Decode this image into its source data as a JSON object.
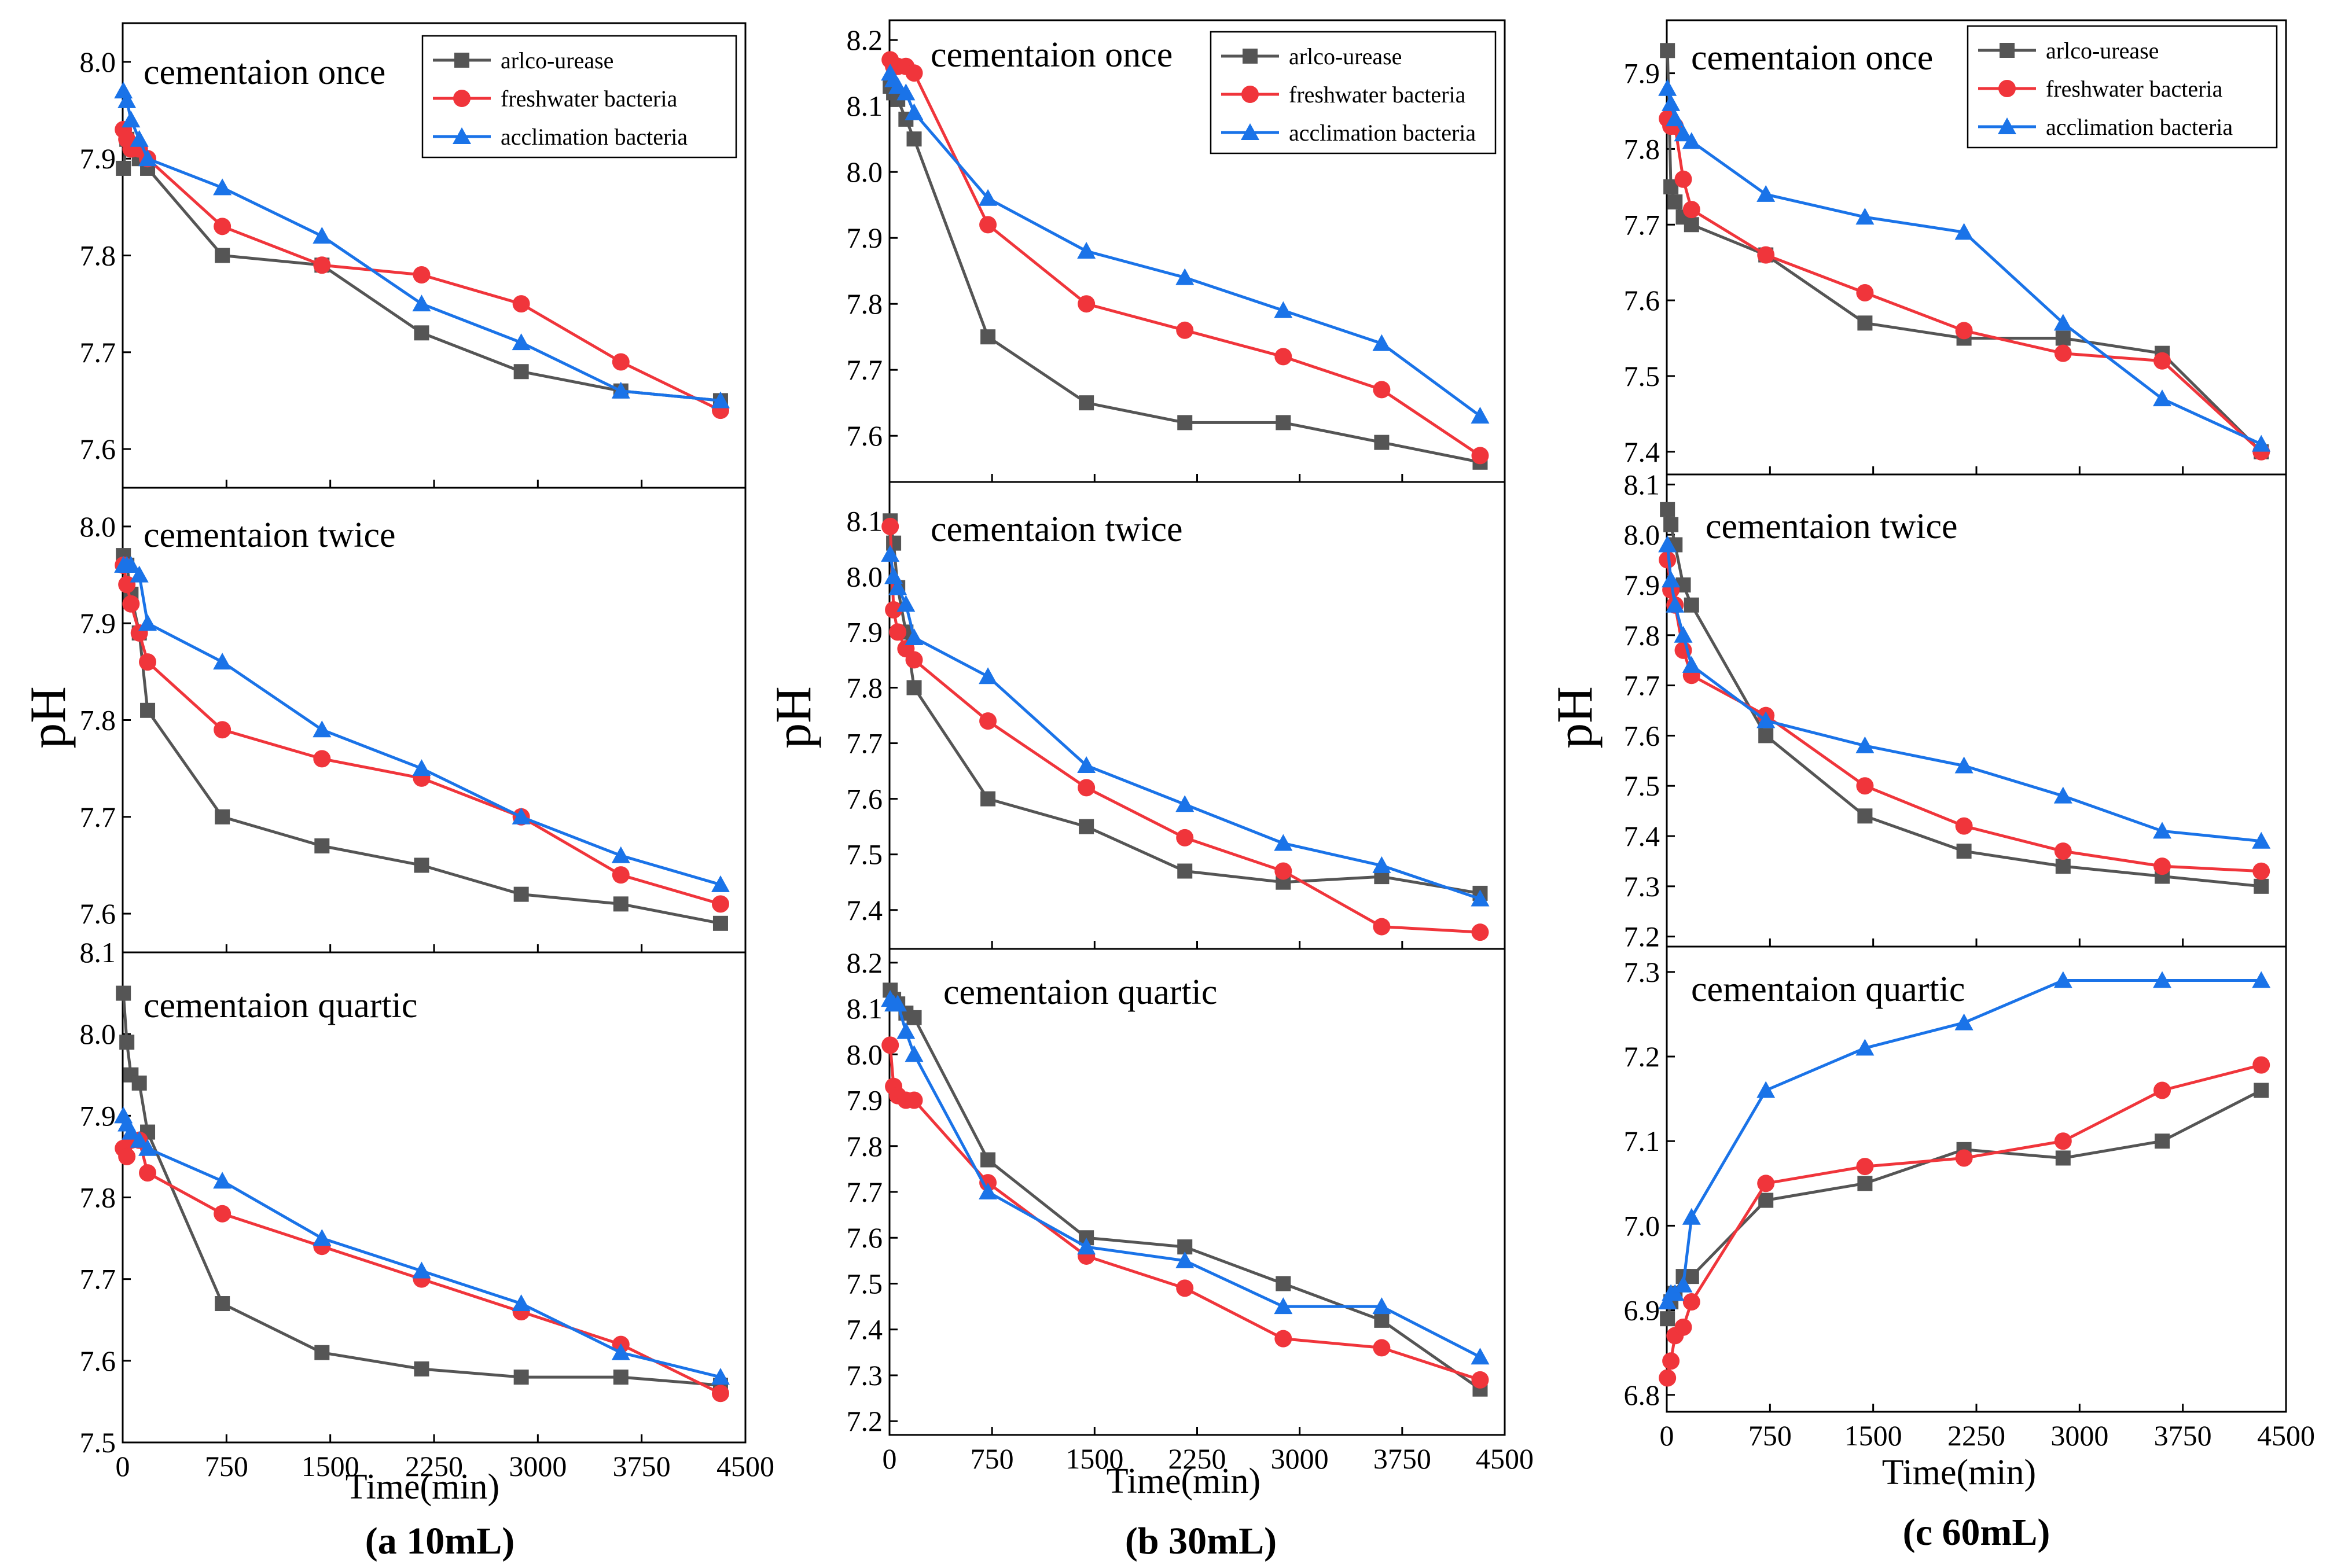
{
  "colors": {
    "arlco": "#555555",
    "freshwater": "#f0353b",
    "acclimation": "#1a73e8"
  },
  "chart_data": [
    {
      "type": "line",
      "subtitle": "(a 10mL)",
      "xlabel": "Time(min)",
      "ylabel": "pH",
      "xlim": [
        0,
        4500
      ],
      "xticks": [
        "0",
        "750",
        "1500",
        "2250",
        "3000",
        "3750",
        "4500"
      ],
      "legend": [
        "arlco-urease",
        "freshwater bacteria",
        "acclimation bacteria"
      ],
      "panels": [
        {
          "title": "cementaion once",
          "ylim": [
            7.56,
            8.04
          ],
          "yticks": [
            7.6,
            7.7,
            7.8,
            7.9,
            8.0
          ],
          "x": [
            5,
            30,
            60,
            120,
            180,
            720,
            1440,
            2160,
            2880,
            3600,
            4320
          ],
          "series": [
            {
              "name": "arlco-urease",
              "values": [
                7.89,
                7.92,
                7.91,
                7.9,
                7.89,
                7.8,
                7.79,
                7.72,
                7.68,
                7.66,
                7.65
              ]
            },
            {
              "name": "freshwater bacteria",
              "values": [
                7.93,
                7.92,
                7.91,
                7.91,
                7.9,
                7.83,
                7.79,
                7.78,
                7.75,
                7.69,
                7.64
              ]
            },
            {
              "name": "acclimation bacteria",
              "values": [
                7.97,
                7.96,
                7.94,
                7.92,
                7.9,
                7.87,
                7.82,
                7.75,
                7.71,
                7.66,
                7.65
              ]
            }
          ]
        },
        {
          "title": "cementaion twice",
          "ylim": [
            7.56,
            8.04
          ],
          "yticks": [
            7.6,
            7.7,
            7.8,
            7.9,
            8.0
          ],
          "x": [
            5,
            30,
            60,
            120,
            180,
            720,
            1440,
            2160,
            2880,
            3600,
            4320
          ],
          "series": [
            {
              "name": "arlco-urease",
              "values": [
                7.97,
                7.96,
                7.93,
                7.89,
                7.81,
                7.7,
                7.67,
                7.65,
                7.62,
                7.61,
                7.59
              ]
            },
            {
              "name": "freshwater bacteria",
              "values": [
                7.96,
                7.94,
                7.92,
                7.89,
                7.86,
                7.79,
                7.76,
                7.74,
                7.7,
                7.64,
                7.61
              ]
            },
            {
              "name": "acclimation bacteria",
              "values": [
                7.96,
                7.96,
                7.96,
                7.95,
                7.9,
                7.86,
                7.79,
                7.75,
                7.7,
                7.66,
                7.63
              ]
            }
          ]
        },
        {
          "title": "cementaion quartic",
          "ylim": [
            7.5,
            8.1
          ],
          "yticks": [
            7.5,
            7.6,
            7.7,
            7.8,
            7.9,
            8.0,
            8.1
          ],
          "x": [
            5,
            30,
            60,
            120,
            180,
            720,
            1440,
            2160,
            2880,
            3600,
            4320
          ],
          "series": [
            {
              "name": "arlco-urease",
              "values": [
                8.05,
                7.99,
                7.95,
                7.94,
                7.88,
                7.67,
                7.61,
                7.59,
                7.58,
                7.58,
                7.57
              ]
            },
            {
              "name": "freshwater bacteria",
              "values": [
                7.86,
                7.85,
                7.87,
                7.87,
                7.83,
                7.78,
                7.74,
                7.7,
                7.66,
                7.62,
                7.56
              ]
            },
            {
              "name": "acclimation bacteria",
              "values": [
                7.9,
                7.89,
                7.88,
                7.87,
                7.86,
                7.82,
                7.75,
                7.71,
                7.67,
                7.61,
                7.58
              ]
            }
          ]
        }
      ]
    },
    {
      "type": "line",
      "subtitle": "(b 30mL)",
      "xlabel": "Time(min)",
      "ylabel": "pH",
      "xlim": [
        0,
        4500
      ],
      "xticks": [
        "0",
        "750",
        "1500",
        "2250",
        "3000",
        "3750",
        "4500"
      ],
      "legend": [
        "arlco-urease",
        "freshwater bacteria",
        "acclimation bacteria"
      ],
      "panels": [
        {
          "title": "cementaion once",
          "ylim": [
            7.53,
            8.23
          ],
          "yticks": [
            7.6,
            7.7,
            7.8,
            7.9,
            8.0,
            8.1,
            8.2
          ],
          "x": [
            5,
            30,
            60,
            120,
            180,
            720,
            1440,
            2160,
            2880,
            3600,
            4320
          ],
          "series": [
            {
              "name": "arlco-urease",
              "values": [
                8.13,
                8.12,
                8.11,
                8.08,
                8.05,
                7.75,
                7.65,
                7.62,
                7.62,
                7.59,
                7.56
              ]
            },
            {
              "name": "freshwater bacteria",
              "values": [
                8.17,
                8.16,
                8.16,
                8.16,
                8.15,
                7.92,
                7.8,
                7.76,
                7.72,
                7.67,
                7.57
              ]
            },
            {
              "name": "acclimation bacteria",
              "values": [
                8.15,
                8.14,
                8.13,
                8.12,
                8.09,
                7.96,
                7.88,
                7.84,
                7.79,
                7.74,
                7.63
              ]
            }
          ]
        },
        {
          "title": "cementaion twice",
          "ylim": [
            7.33,
            8.17
          ],
          "yticks": [
            7.4,
            7.5,
            7.6,
            7.7,
            7.8,
            7.9,
            8.0,
            8.1
          ],
          "x": [
            5,
            30,
            60,
            120,
            180,
            720,
            1440,
            2160,
            2880,
            3600,
            4320
          ],
          "series": [
            {
              "name": "arlco-urease",
              "values": [
                8.1,
                8.06,
                7.98,
                7.9,
                7.8,
                7.6,
                7.55,
                7.47,
                7.45,
                7.46,
                7.43
              ]
            },
            {
              "name": "freshwater bacteria",
              "values": [
                8.09,
                7.94,
                7.9,
                7.87,
                7.85,
                7.74,
                7.62,
                7.53,
                7.47,
                7.37,
                7.36
              ]
            },
            {
              "name": "acclimation bacteria",
              "values": [
                8.04,
                8.0,
                7.98,
                7.95,
                7.89,
                7.82,
                7.66,
                7.59,
                7.52,
                7.48,
                7.42
              ]
            }
          ]
        },
        {
          "title": "cementaion quartic",
          "ylim": [
            7.17,
            8.23
          ],
          "yticks": [
            7.2,
            7.3,
            7.4,
            7.5,
            7.6,
            7.7,
            7.8,
            7.9,
            8.0,
            8.1,
            8.2
          ],
          "x": [
            5,
            30,
            60,
            120,
            180,
            720,
            1440,
            2160,
            2880,
            3600,
            4320
          ],
          "series": [
            {
              "name": "arlco-urease",
              "values": [
                8.14,
                8.12,
                8.11,
                8.09,
                8.08,
                7.77,
                7.6,
                7.58,
                7.5,
                7.42,
                7.27
              ]
            },
            {
              "name": "freshwater bacteria",
              "values": [
                8.02,
                7.93,
                7.91,
                7.9,
                7.9,
                7.72,
                7.56,
                7.49,
                7.38,
                7.36,
                7.29
              ]
            },
            {
              "name": "acclimation bacteria",
              "values": [
                8.12,
                8.11,
                8.11,
                8.05,
                8.0,
                7.7,
                7.58,
                7.55,
                7.45,
                7.45,
                7.34
              ]
            }
          ]
        }
      ]
    },
    {
      "type": "line",
      "subtitle": "(c 60mL)",
      "xlabel": "Time(min)",
      "ylabel": "pH",
      "xlim": [
        0,
        4500
      ],
      "xticks": [
        "0",
        "750",
        "1500",
        "2250",
        "3000",
        "3750",
        "4500"
      ],
      "legend": [
        "arlco-urease",
        "freshwater bacteria",
        "acclimation bacteria"
      ],
      "panels": [
        {
          "title": "cementaion once",
          "ylim": [
            7.37,
            7.97
          ],
          "yticks": [
            7.4,
            7.5,
            7.6,
            7.7,
            7.8,
            7.9
          ],
          "x": [
            5,
            30,
            60,
            120,
            180,
            720,
            1440,
            2160,
            2880,
            3600,
            4320
          ],
          "series": [
            {
              "name": "arlco-urease",
              "values": [
                7.93,
                7.75,
                7.73,
                7.71,
                7.7,
                7.66,
                7.57,
                7.55,
                7.55,
                7.53,
                7.4
              ]
            },
            {
              "name": "freshwater bacteria",
              "values": [
                7.84,
                7.83,
                7.83,
                7.76,
                7.72,
                7.66,
                7.61,
                7.56,
                7.53,
                7.52,
                7.4
              ]
            },
            {
              "name": "acclimation bacteria",
              "values": [
                7.88,
                7.86,
                7.84,
                7.82,
                7.81,
                7.74,
                7.71,
                7.69,
                7.57,
                7.47,
                7.41
              ]
            }
          ]
        },
        {
          "title": "cementaion twice",
          "ylim": [
            7.18,
            8.12
          ],
          "yticks": [
            7.2,
            7.3,
            7.4,
            7.5,
            7.6,
            7.7,
            7.8,
            7.9,
            8.0,
            8.1
          ],
          "x": [
            5,
            30,
            60,
            120,
            180,
            720,
            1440,
            2160,
            2880,
            3600,
            4320
          ],
          "series": [
            {
              "name": "arlco-urease",
              "values": [
                8.05,
                8.02,
                7.98,
                7.9,
                7.86,
                7.6,
                7.44,
                7.37,
                7.34,
                7.32,
                7.3
              ]
            },
            {
              "name": "freshwater bacteria",
              "values": [
                7.95,
                7.89,
                7.86,
                7.77,
                7.72,
                7.64,
                7.5,
                7.42,
                7.37,
                7.34,
                7.33
              ]
            },
            {
              "name": "acclimation bacteria",
              "values": [
                7.98,
                7.91,
                7.86,
                7.8,
                7.74,
                7.63,
                7.58,
                7.54,
                7.48,
                7.41,
                7.39
              ]
            }
          ]
        },
        {
          "title": "cementaion quartic",
          "ylim": [
            6.78,
            7.33
          ],
          "yticks": [
            6.8,
            6.9,
            7.0,
            7.1,
            7.2,
            7.3
          ],
          "x": [
            5,
            30,
            60,
            120,
            180,
            720,
            1440,
            2160,
            2880,
            3600,
            4320
          ],
          "series": [
            {
              "name": "arlco-urease",
              "values": [
                6.89,
                6.91,
                6.92,
                6.94,
                6.94,
                7.03,
                7.05,
                7.09,
                7.08,
                7.1,
                7.16
              ]
            },
            {
              "name": "freshwater bacteria",
              "values": [
                6.82,
                6.84,
                6.87,
                6.88,
                6.91,
                7.05,
                7.07,
                7.08,
                7.1,
                7.16,
                7.19
              ]
            },
            {
              "name": "acclimation bacteria",
              "values": [
                6.91,
                6.92,
                6.92,
                6.93,
                7.01,
                7.16,
                7.21,
                7.24,
                7.29,
                7.29,
                7.29
              ]
            }
          ]
        }
      ]
    }
  ]
}
